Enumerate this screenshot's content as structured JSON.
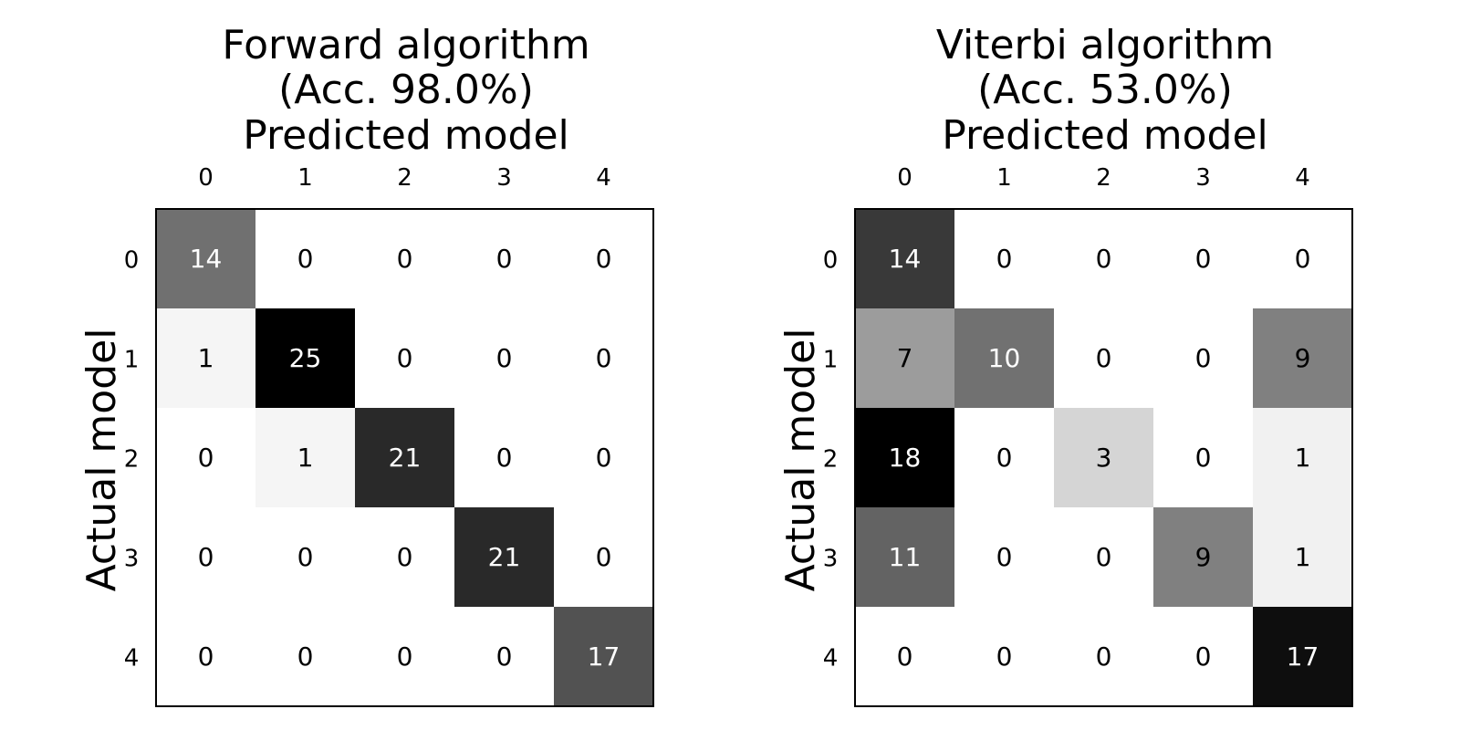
{
  "chart_data": [
    {
      "type": "heatmap",
      "title": [
        "Forward algorithm",
        "(Acc. 98.0%)",
        "Predicted model"
      ],
      "xlabel": "Predicted model",
      "ylabel": "Actual model",
      "x_ticks": [
        "0",
        "1",
        "2",
        "3",
        "4"
      ],
      "y_ticks": [
        "0",
        "1",
        "2",
        "3",
        "4"
      ],
      "colormap": "greys",
      "matrix": [
        [
          14,
          0,
          0,
          0,
          0
        ],
        [
          1,
          25,
          0,
          0,
          0
        ],
        [
          0,
          1,
          21,
          0,
          0
        ],
        [
          0,
          0,
          0,
          21,
          0
        ],
        [
          0,
          0,
          0,
          0,
          17
        ]
      ]
    },
    {
      "type": "heatmap",
      "title": [
        "Viterbi algorithm",
        "(Acc. 53.0%)",
        "Predicted model"
      ],
      "xlabel": "Predicted model",
      "ylabel": "Actual model",
      "x_ticks": [
        "0",
        "1",
        "2",
        "3",
        "4"
      ],
      "y_ticks": [
        "0",
        "1",
        "2",
        "3",
        "4"
      ],
      "colormap": "greys",
      "matrix": [
        [
          14,
          0,
          0,
          0,
          0
        ],
        [
          7,
          10,
          0,
          0,
          9
        ],
        [
          18,
          0,
          3,
          0,
          1
        ],
        [
          11,
          0,
          0,
          9,
          1
        ],
        [
          0,
          0,
          0,
          0,
          17
        ]
      ]
    }
  ]
}
